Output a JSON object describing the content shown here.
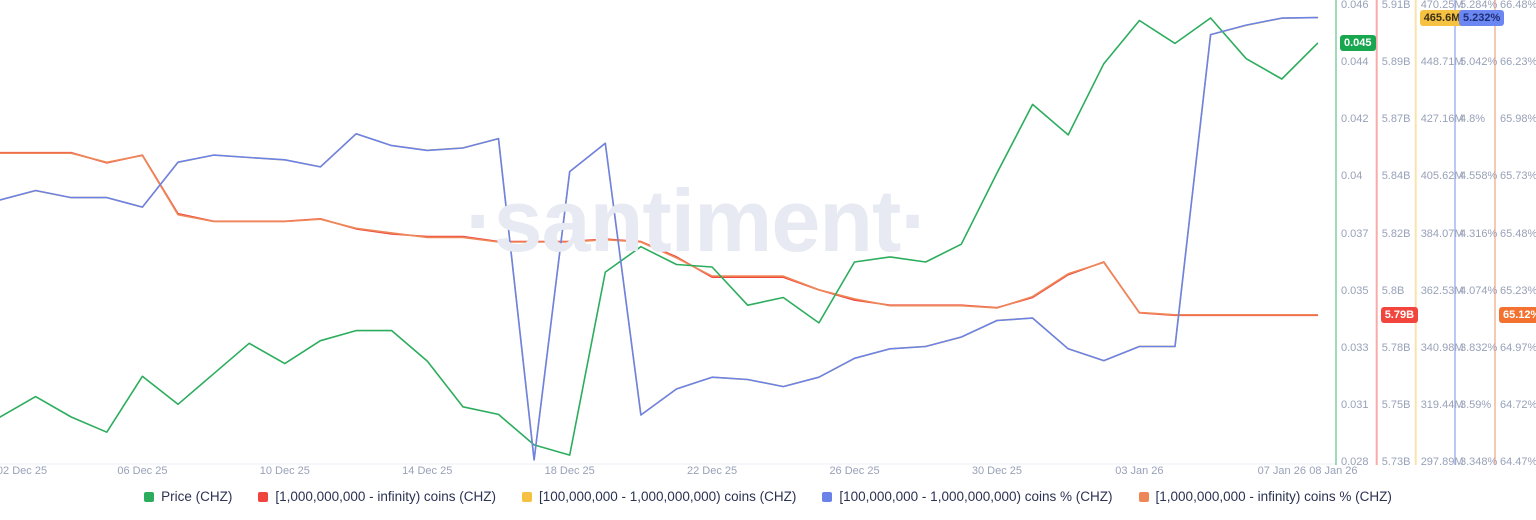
{
  "watermark": "·santiment·",
  "colors": {
    "green": "#2cad5d",
    "red": "#f0453f",
    "yellow": "#f5c142",
    "blue": "#6b82e8",
    "orange": "#ee8757",
    "tick_text": "#98a1b8",
    "legend_text": "#2b3252",
    "watermark_text": "#e7eaf2",
    "hairline": "#eceff6"
  },
  "chart_data": {
    "type": "line",
    "grid": "off",
    "legend_position": "bottom-center",
    "dates": [
      "02 Dec 25",
      "03 Dec 25",
      "04 Dec 25",
      "05 Dec 25",
      "06 Dec 25",
      "07 Dec 25",
      "08 Dec 25",
      "09 Dec 25",
      "10 Dec 25",
      "11 Dec 25",
      "12 Dec 25",
      "13 Dec 25",
      "14 Dec 25",
      "15 Dec 25",
      "16 Dec 25",
      "17 Dec 25",
      "18 Dec 25",
      "19 Dec 25",
      "20 Dec 25",
      "21 Dec 25",
      "22 Dec 25",
      "23 Dec 25",
      "24 Dec 25",
      "25 Dec 25",
      "26 Dec 25",
      "27 Dec 25",
      "28 Dec 25",
      "29 Dec 25",
      "30 Dec 25",
      "31 Dec 25",
      "01 Jan 26",
      "02 Jan 26",
      "03 Jan 26",
      "04 Jan 26",
      "05 Jan 26",
      "06 Jan 26",
      "07 Jan 26",
      "08 Jan 26"
    ],
    "x_ticks": [
      {
        "label": "02 Dec 25",
        "day": 0
      },
      {
        "label": "06 Dec 25",
        "day": 4
      },
      {
        "label": "10 Dec 25",
        "day": 8
      },
      {
        "label": "14 Dec 25",
        "day": 12
      },
      {
        "label": "18 Dec 25",
        "day": 16
      },
      {
        "label": "22 Dec 25",
        "day": 20
      },
      {
        "label": "26 Dec 25",
        "day": 24
      },
      {
        "label": "30 Dec 25",
        "day": 28
      },
      {
        "label": "03 Jan 26",
        "day": 32
      },
      {
        "label": "07 Jan 26",
        "day": 36
      },
      {
        "label": "08 Jan 26",
        "day": 37
      }
    ],
    "axes": [
      {
        "id": "price",
        "color_key": "green",
        "min": 0.028,
        "max": 0.046,
        "ticks": [
          "0.046",
          "0.044",
          "0.042",
          "0.04",
          "0.037",
          "0.035",
          "0.033",
          "0.031",
          "0.028"
        ],
        "badge": {
          "text": "0.045",
          "value": 0.0445,
          "bg": "#18a74e",
          "fg": "#ffffff"
        }
      },
      {
        "id": "coins_1b_inf",
        "color_key": "red",
        "min": 5.73,
        "max": 5.91,
        "ticks": [
          "5.91B",
          "5.89B",
          "5.87B",
          "5.84B",
          "5.82B",
          "5.8B",
          "5.78B",
          "5.75B",
          "5.73B"
        ],
        "badge": {
          "text": "5.79B",
          "value": 5.788,
          "bg": "#f2453d",
          "fg": "#ffffff"
        }
      },
      {
        "id": "coins_100m_1b",
        "color_key": "yellow",
        "min": 297.89,
        "max": 470.25,
        "ticks": [
          "470.25M",
          "448.71M",
          "427.16M",
          "405.62M",
          "384.07M",
          "362.53M",
          "340.98M",
          "319.44M",
          "297.89M"
        ],
        "badge": {
          "text": "465.6M",
          "value": 465.6,
          "bg": "#f5c242",
          "fg": "#3b3116"
        }
      },
      {
        "id": "pct_100m_1b",
        "color_key": "blue",
        "min": 3.348,
        "max": 5.284,
        "ticks": [
          "5.284%",
          "5.042%",
          "4.8%",
          "4.558%",
          "4.316%",
          "4.074%",
          "3.832%",
          "3.59%",
          "3.348%"
        ],
        "badge": {
          "text": "5.232%",
          "value": 5.232,
          "bg": "#6d87f2",
          "fg": "#1b2f77"
        }
      },
      {
        "id": "pct_1b_inf",
        "color_key": "orange",
        "min": 64.47,
        "max": 66.48,
        "ticks": [
          "66.48%",
          "66.23%",
          "65.98%",
          "65.73%",
          "65.48%",
          "65.23%",
          "64.97%",
          "64.72%",
          "64.47%"
        ],
        "badge": {
          "text": "65.12%",
          "value": 65.12,
          "bg": "#f3722f",
          "fg": "#ffffff"
        }
      }
    ],
    "draw_order": [
      "coins_1b_inf",
      "coins_100m_1b",
      "pct_1b_inf",
      "price",
      "pct_100m_1b"
    ],
    "series": [
      {
        "name": "Price (CHZ)",
        "axis": "price",
        "color_key": "green",
        "values": [
          0.0298,
          0.0306,
          0.0298,
          0.0292,
          0.0314,
          0.0303,
          0.0315,
          0.0327,
          0.0319,
          0.0328,
          0.0332,
          0.0332,
          0.032,
          0.0302,
          0.0299,
          0.0287,
          0.0283,
          0.0355,
          0.0365,
          0.0358,
          0.0357,
          0.0342,
          0.0345,
          0.0335,
          0.0359,
          0.0361,
          0.0359,
          0.0366,
          0.0394,
          0.0421,
          0.0409,
          0.0437,
          0.0454,
          0.0445,
          0.0455,
          0.0439,
          0.0431,
          0.0445
        ]
      },
      {
        "name": "[1,000,000,000 - infinity) coins (CHZ)",
        "axis": "coins_1b_inf",
        "color_key": "red",
        "values": [
          5.852,
          5.852,
          5.852,
          5.848,
          5.851,
          5.828,
          5.825,
          5.825,
          5.825,
          5.826,
          5.822,
          5.82,
          5.819,
          5.819,
          5.817,
          5.817,
          5.817,
          5.818,
          5.817,
          5.811,
          5.803,
          5.803,
          5.803,
          5.798,
          5.794,
          5.792,
          5.792,
          5.792,
          5.791,
          5.795,
          5.804,
          5.809,
          5.789,
          5.788,
          5.788,
          5.788,
          5.788,
          5.788
        ]
      },
      {
        "name": "[100,000,000 - 1,000,000,000) coins (CHZ)",
        "axis": "coins_100m_1b",
        "color_key": "yellow",
        "values": [
          396.9,
          400.4,
          397.8,
          397.8,
          394.2,
          411.1,
          413.8,
          412.9,
          412.0,
          409.4,
          421.8,
          417.4,
          415.6,
          416.5,
          420.0,
          299.0,
          407.6,
          418.3,
          315.9,
          325.7,
          330.1,
          329.2,
          326.6,
          330.1,
          337.2,
          340.8,
          341.7,
          345.2,
          351.5,
          352.4,
          340.8,
          336.3,
          341.7,
          341.7,
          459.2,
          462.7,
          465.4,
          465.6
        ]
      },
      {
        "name": "[100,000,000 - 1,000,000,000) coins % (CHZ)",
        "axis": "pct_100m_1b",
        "color_key": "blue",
        "values": [
          4.46,
          4.5,
          4.47,
          4.47,
          4.43,
          4.62,
          4.65,
          4.64,
          4.63,
          4.6,
          4.74,
          4.69,
          4.67,
          4.68,
          4.72,
          3.36,
          4.58,
          4.7,
          3.55,
          3.66,
          3.71,
          3.7,
          3.67,
          3.71,
          3.79,
          3.83,
          3.84,
          3.88,
          3.95,
          3.96,
          3.83,
          3.78,
          3.84,
          3.84,
          5.16,
          5.2,
          5.23,
          5.232
        ]
      },
      {
        "name": "[1,000,000,000 - infinity) coins % (CHZ)",
        "axis": "pct_1b_inf",
        "color_key": "orange",
        "values": [
          65.83,
          65.83,
          65.83,
          65.79,
          65.82,
          65.56,
          65.53,
          65.53,
          65.53,
          65.54,
          65.5,
          65.48,
          65.46,
          65.46,
          65.44,
          65.44,
          65.44,
          65.45,
          65.44,
          65.37,
          65.29,
          65.29,
          65.29,
          65.23,
          65.19,
          65.16,
          65.16,
          65.16,
          65.15,
          65.2,
          65.3,
          65.35,
          65.13,
          65.12,
          65.12,
          65.12,
          65.12,
          65.12
        ]
      }
    ],
    "legend": [
      {
        "label": "Price (CHZ)",
        "color_key": "green"
      },
      {
        "label": "[1,000,000,000 - infinity) coins (CHZ)",
        "color_key": "red"
      },
      {
        "label": "[100,000,000 - 1,000,000,000) coins (CHZ)",
        "color_key": "yellow"
      },
      {
        "label": "[100,000,000 - 1,000,000,000) coins % (CHZ)",
        "color_key": "blue"
      },
      {
        "label": "[1,000,000,000 - infinity) coins % (CHZ)",
        "color_key": "orange"
      }
    ]
  }
}
